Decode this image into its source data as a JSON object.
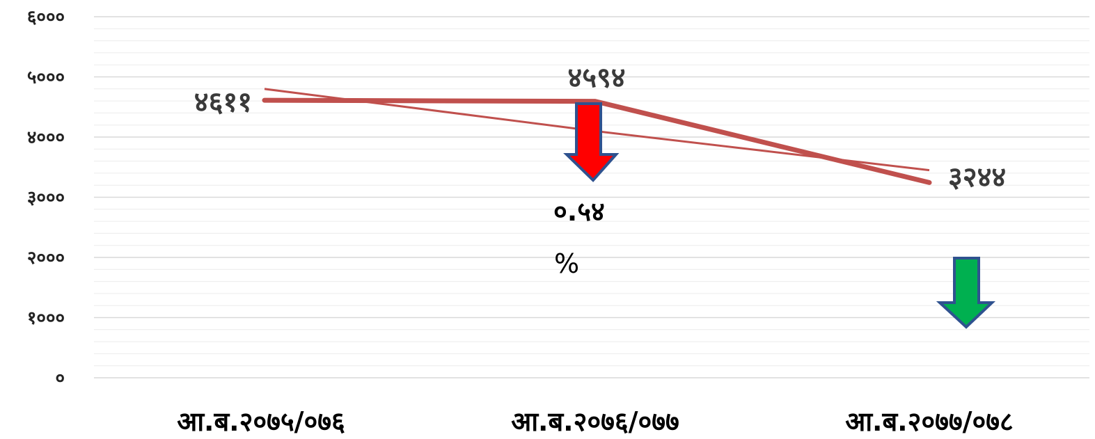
{
  "chart_data": {
    "type": "line",
    "categories": [
      "आ.ब.२०७५/०७६",
      "आ.ब.२०७६/०७७",
      "आ.ब.२०७७/०७८"
    ],
    "series": [
      {
        "values": [
          4611,
          4594,
          3244
        ],
        "labels": [
          "४६११",
          "४५९४",
          "३२४४"
        ]
      }
    ],
    "trendline": {
      "values": [
        4800,
        4100,
        3450
      ]
    },
    "ylim": [
      0,
      6000
    ],
    "yticks": [
      0,
      1000,
      2000,
      3000,
      4000,
      5000,
      6000
    ],
    "ytick_labels": [
      "०",
      "१०००",
      "२०००",
      "३०००",
      "४०००",
      "५०००",
      "६०००"
    ],
    "grid": true,
    "annotations": {
      "change_value": "०.५४",
      "change_unit": "%"
    },
    "colors": {
      "series": "#c0504d",
      "down_arrow_red": "#ff0000",
      "down_arrow_green": "#00b050",
      "arrow_outline": "#2f528f",
      "grid_major": "#d9d9d9",
      "grid_minor": "#ececec"
    },
    "arrows": [
      "down-arrow-red-icon",
      "down-arrow-green-icon"
    ]
  }
}
